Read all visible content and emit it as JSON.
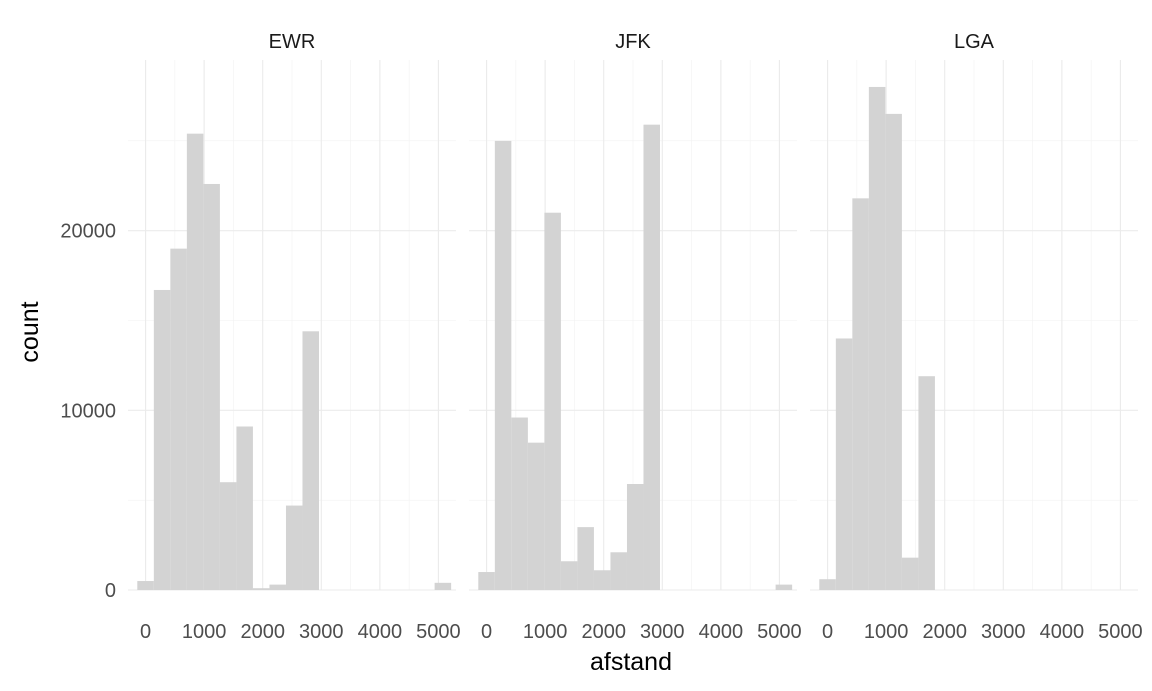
{
  "chart_data": {
    "type": "bar",
    "chart_subtype": "faceted-histogram",
    "xlabel": "afstand",
    "ylabel": "count",
    "xlim": [
      -300,
      5300
    ],
    "ylim": [
      0,
      29500
    ],
    "x_ticks": [
      "0",
      "1000",
      "2000",
      "3000",
      "4000",
      "5000"
    ],
    "y_ticks": [
      "0",
      "10000",
      "20000"
    ],
    "bin_width": 282,
    "bar_color": "#d3d3d3",
    "grid": true,
    "panels": [
      {
        "name": "EWR",
        "bins": [
          {
            "x0": -141,
            "x1": 141,
            "count": 500
          },
          {
            "x0": 141,
            "x1": 423,
            "count": 16700
          },
          {
            "x0": 423,
            "x1": 705,
            "count": 19000
          },
          {
            "x0": 705,
            "x1": 987,
            "count": 25400
          },
          {
            "x0": 987,
            "x1": 1269,
            "count": 22600
          },
          {
            "x0": 1269,
            "x1": 1551,
            "count": 6000
          },
          {
            "x0": 1551,
            "x1": 1833,
            "count": 9100
          },
          {
            "x0": 1833,
            "x1": 2115,
            "count": 100
          },
          {
            "x0": 2115,
            "x1": 2397,
            "count": 300
          },
          {
            "x0": 2397,
            "x1": 2679,
            "count": 4700
          },
          {
            "x0": 2679,
            "x1": 2961,
            "count": 14400
          },
          {
            "x0": 4935,
            "x1": 5217,
            "count": 400
          }
        ]
      },
      {
        "name": "JFK",
        "bins": [
          {
            "x0": -141,
            "x1": 141,
            "count": 1000
          },
          {
            "x0": 141,
            "x1": 423,
            "count": 25000
          },
          {
            "x0": 423,
            "x1": 705,
            "count": 9600
          },
          {
            "x0": 705,
            "x1": 987,
            "count": 8200
          },
          {
            "x0": 987,
            "x1": 1269,
            "count": 21000
          },
          {
            "x0": 1269,
            "x1": 1551,
            "count": 1600
          },
          {
            "x0": 1551,
            "x1": 1833,
            "count": 3500
          },
          {
            "x0": 1833,
            "x1": 2115,
            "count": 1100
          },
          {
            "x0": 2115,
            "x1": 2397,
            "count": 2100
          },
          {
            "x0": 2397,
            "x1": 2679,
            "count": 5900
          },
          {
            "x0": 2679,
            "x1": 2961,
            "count": 25900
          },
          {
            "x0": 4935,
            "x1": 5217,
            "count": 300
          }
        ]
      },
      {
        "name": "LGA",
        "bins": [
          {
            "x0": -141,
            "x1": 141,
            "count": 600
          },
          {
            "x0": 141,
            "x1": 423,
            "count": 14000
          },
          {
            "x0": 423,
            "x1": 705,
            "count": 21800
          },
          {
            "x0": 705,
            "x1": 987,
            "count": 28000
          },
          {
            "x0": 987,
            "x1": 1269,
            "count": 26500
          },
          {
            "x0": 1269,
            "x1": 1551,
            "count": 1800
          },
          {
            "x0": 1551,
            "x1": 1833,
            "count": 11900
          }
        ]
      }
    ]
  }
}
